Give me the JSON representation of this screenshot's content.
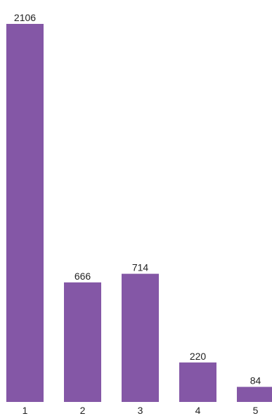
{
  "chart_data": {
    "type": "bar",
    "categories": [
      "1",
      "2",
      "3",
      "4",
      "5"
    ],
    "values": [
      2106,
      666,
      714,
      220,
      84
    ],
    "ylim": [
      0,
      2106
    ],
    "grid": false,
    "legend": "none",
    "bar_color": "#8457a6",
    "text_color": "#1f1f1f",
    "title": "",
    "xlabel": "",
    "ylabel": ""
  }
}
